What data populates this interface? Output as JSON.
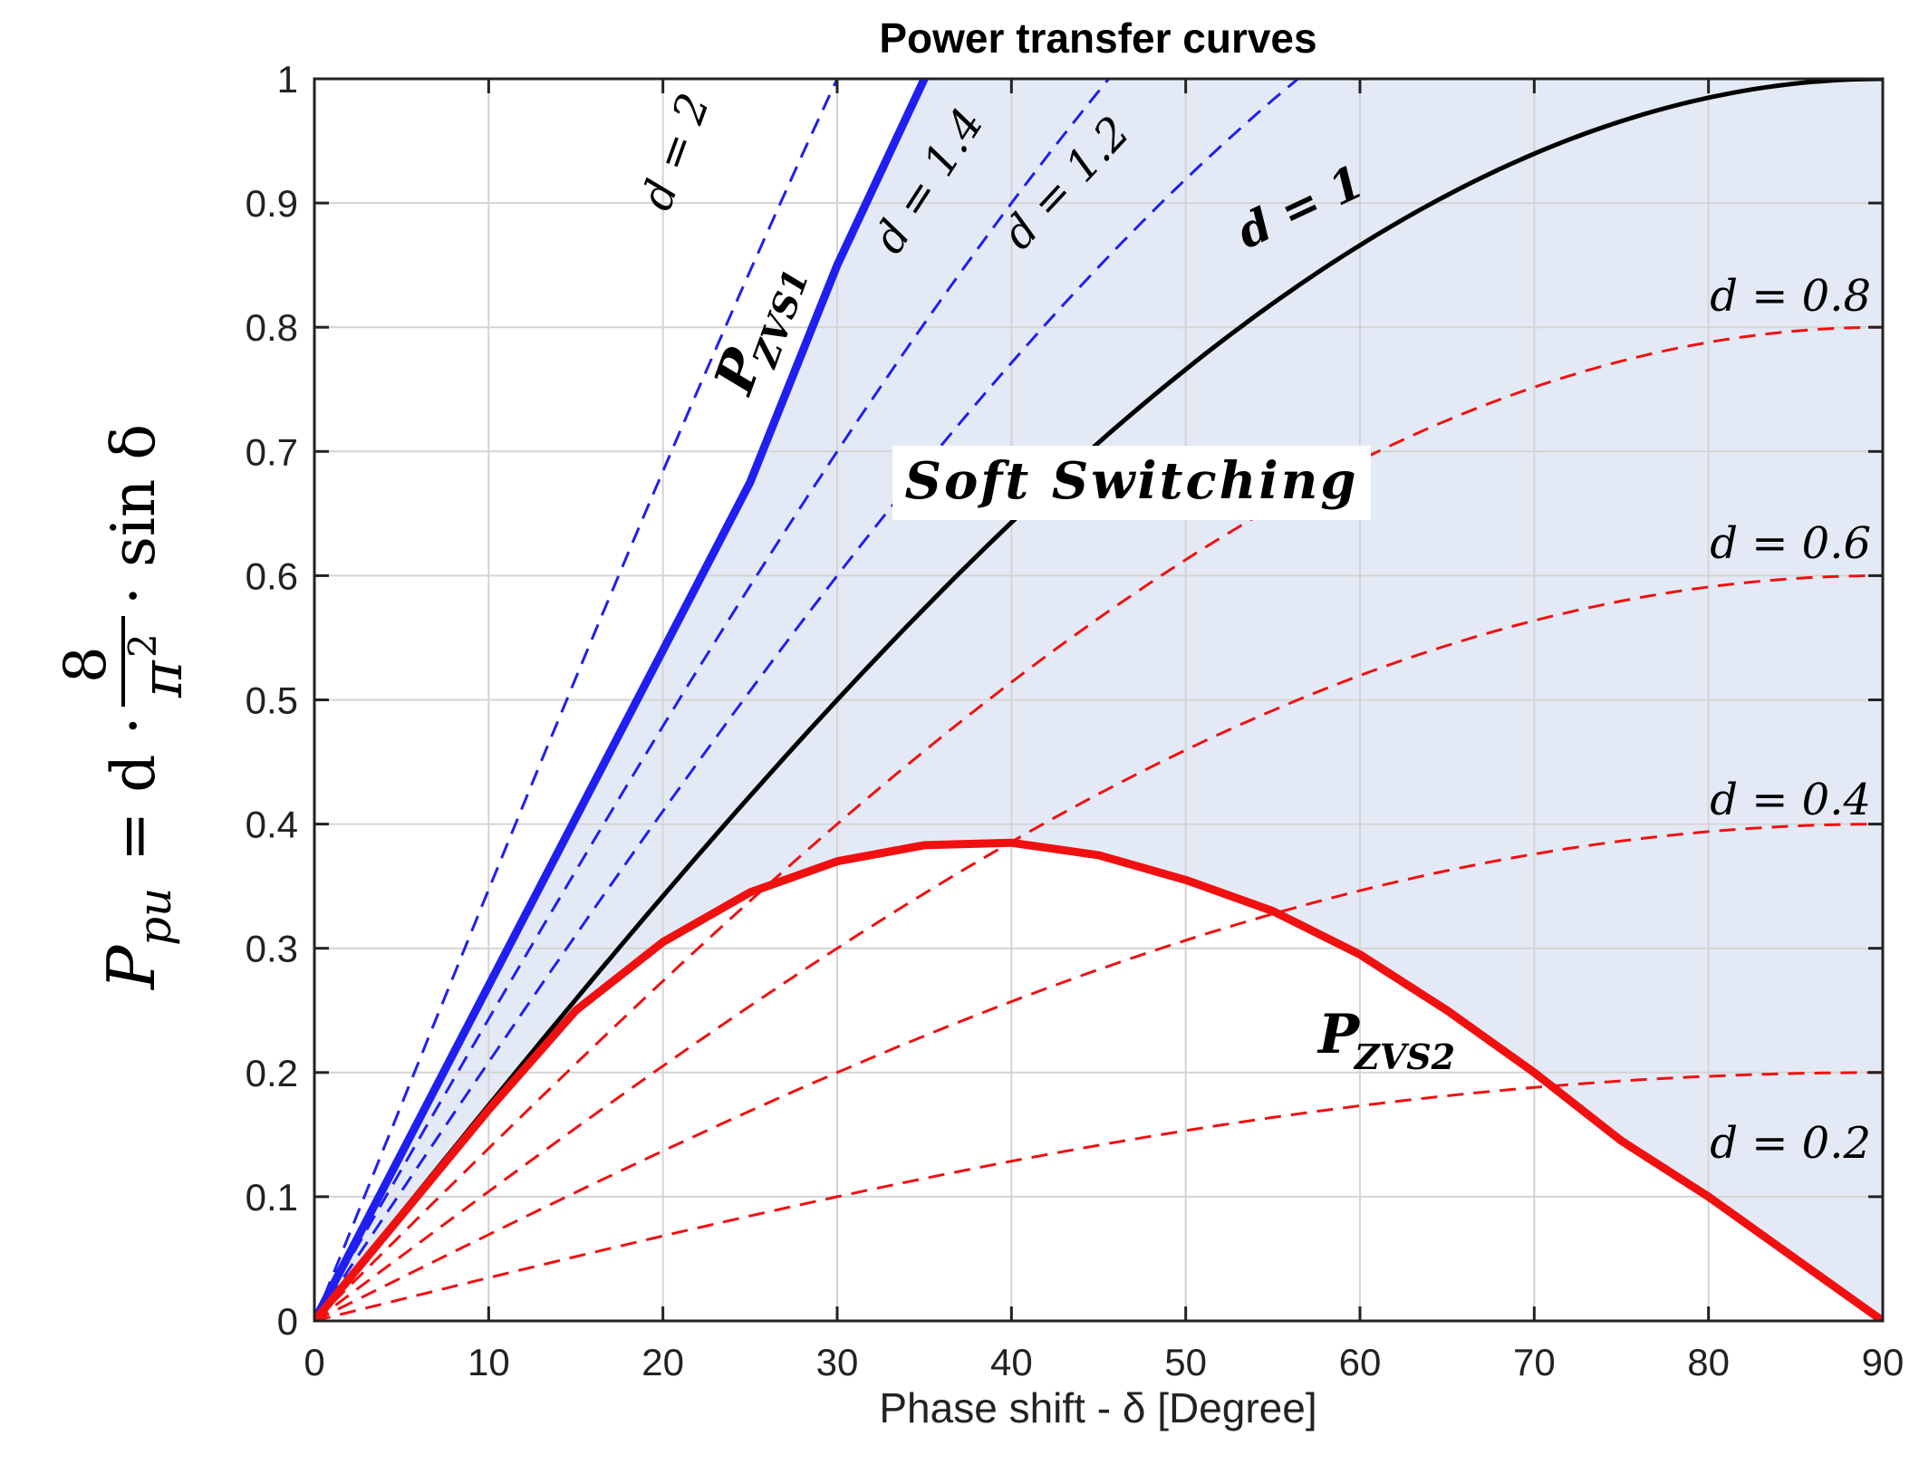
{
  "chart_data": {
    "type": "line",
    "title": "Power transfer curves",
    "xlabel": "Phase shift - δ [Degree]",
    "ylabel": {
      "main": "P",
      "sub": "pu",
      "eq": " = d ·",
      "num": "8",
      "den": "π",
      "den_sup": "2",
      "tail": "· sin δ"
    },
    "xlim": [
      0,
      90
    ],
    "ylim": [
      0,
      1
    ],
    "xticks": [
      "0",
      "10",
      "20",
      "30",
      "40",
      "50",
      "60",
      "70",
      "80",
      "90"
    ],
    "yticks": [
      "0",
      "0.1",
      "0.2",
      "0.3",
      "0.4",
      "0.5",
      "0.6",
      "0.7",
      "0.8",
      "0.9",
      "1"
    ],
    "grid": true,
    "formula": "P = d * sin(delta)",
    "colors": {
      "region_fill": "#e4eaf5",
      "blue": "#1f1ff2",
      "red": "#f01010",
      "black": "#000000",
      "annot_blue": "#1e72c0"
    },
    "series": [
      {
        "name": "d = 2",
        "d": 2,
        "style": "dashed",
        "color": "#1f1ff2"
      },
      {
        "name": "d = 1.4",
        "d": 1.4,
        "style": "dashed",
        "color": "#1f1ff2"
      },
      {
        "name": "d = 1.2",
        "d": 1.2,
        "style": "dashed",
        "color": "#1f1ff2"
      },
      {
        "name": "d = 1",
        "d": 1,
        "style": "solid",
        "color": "#000000"
      },
      {
        "name": "d = 0.8",
        "d": 0.8,
        "style": "dashed",
        "color": "#f01010"
      },
      {
        "name": "d = 0.6",
        "d": 0.6,
        "style": "dashed",
        "color": "#f01010"
      },
      {
        "name": "d = 0.4",
        "d": 0.4,
        "style": "dashed",
        "color": "#f01010"
      },
      {
        "name": "d = 0.2",
        "d": 0.2,
        "style": "dashed",
        "color": "#f01010"
      }
    ],
    "boundaries": [
      {
        "name": "P_ZVS1",
        "label_main": "P",
        "label_sub": "ZVS1",
        "color": "#1f1ff2",
        "x": [
          0,
          5,
          10,
          15,
          20,
          25,
          30,
          35
        ],
        "y": [
          0,
          0.135,
          0.27,
          0.405,
          0.54,
          0.675,
          0.85,
          1.0
        ]
      },
      {
        "name": "P_ZVS2",
        "label_main": "P",
        "label_sub": "ZVS2",
        "color": "#f01010",
        "x": [
          0,
          5,
          10,
          15,
          20,
          25,
          30,
          35,
          40,
          45,
          50,
          55,
          60,
          65,
          70,
          75,
          80,
          85,
          90
        ],
        "y": [
          0,
          0.085,
          0.17,
          0.25,
          0.305,
          0.345,
          0.37,
          0.383,
          0.385,
          0.375,
          0.355,
          0.33,
          0.295,
          0.25,
          0.2,
          0.145,
          0.1,
          0.05,
          0
        ]
      }
    ],
    "annotations": {
      "region": "Soft Switching",
      "d2": "d = 2",
      "d14": "d = 1.4",
      "d12": "d = 1.2",
      "d1": "d = 1",
      "d08": "d = 0.8",
      "d06": "d = 0.6",
      "d04": "d = 0.4",
      "d02": "d = 0.2"
    }
  }
}
